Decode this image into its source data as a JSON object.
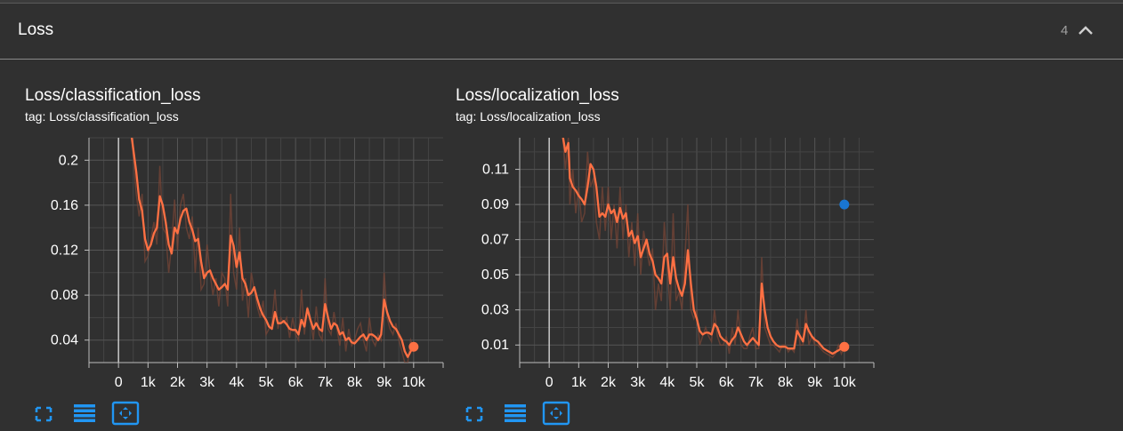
{
  "group": {
    "title": "Loss",
    "count": "4",
    "collapse_icon": "chevron-up-icon"
  },
  "colors": {
    "line": "#ff7043",
    "line_faint": "#7a4636",
    "point_blue": "#1976d2",
    "grid": "#555555",
    "axis": "#bdbdbd",
    "tool_blue": "#2196f3"
  },
  "tools": [
    "fullscreen-icon",
    "data-table-icon",
    "fit-domain-icon"
  ],
  "chart_data": [
    {
      "type": "line",
      "title": "Loss/classification_loss",
      "subtitle": "tag: Loss/classification_loss",
      "xlabel": "",
      "ylabel": "",
      "xlim": [
        -1000,
        11000
      ],
      "ylim": [
        0.02,
        0.22
      ],
      "x_ticks": [
        0,
        1000,
        2000,
        3000,
        4000,
        5000,
        6000,
        7000,
        8000,
        9000,
        10000
      ],
      "x_tick_labels": [
        "0",
        "1k",
        "2k",
        "3k",
        "4k",
        "5k",
        "6k",
        "7k",
        "8k",
        "9k",
        "10k"
      ],
      "y_ticks": [
        0.04,
        0.08,
        0.12,
        0.16,
        0.2
      ],
      "y_tick_labels": [
        "0.04",
        "0.08",
        "0.12",
        "0.16",
        "0.2"
      ],
      "grid": true,
      "series": [
        {
          "smoothed": true,
          "x": [
            450,
            600,
            700,
            800,
            900,
            1000,
            1100,
            1200,
            1300,
            1400,
            1500,
            1600,
            1700,
            1800,
            1900,
            2000,
            2100,
            2200,
            2300,
            2400,
            2500,
            2600,
            2700,
            2800,
            2900,
            3000,
            3100,
            3200,
            3300,
            3400,
            3500,
            3600,
            3700,
            3800,
            3900,
            4000,
            4100,
            4200,
            4300,
            4400,
            4500,
            4600,
            4700,
            4800,
            4900,
            5000,
            5100,
            5200,
            5300,
            5400,
            5500,
            5600,
            5700,
            5800,
            5900,
            6000,
            6100,
            6200,
            6300,
            6400,
            6500,
            6600,
            6700,
            6800,
            6900,
            7000,
            7100,
            7200,
            7300,
            7400,
            7500,
            7600,
            7700,
            7800,
            7900,
            8000,
            8100,
            8200,
            8300,
            8400,
            8500,
            8600,
            8700,
            8800,
            8900,
            9000,
            9100,
            9200,
            9300,
            9400,
            9500,
            9600,
            9700,
            9800,
            9900,
            10000
          ],
          "y": [
            0.22,
            0.19,
            0.165,
            0.155,
            0.13,
            0.12,
            0.125,
            0.135,
            0.14,
            0.168,
            0.16,
            0.145,
            0.125,
            0.117,
            0.14,
            0.135,
            0.148,
            0.155,
            0.157,
            0.145,
            0.138,
            0.128,
            0.13,
            0.11,
            0.095,
            0.1,
            0.102,
            0.095,
            0.09,
            0.085,
            0.087,
            0.09,
            0.085,
            0.133,
            0.124,
            0.105,
            0.118,
            0.095,
            0.09,
            0.08,
            0.082,
            0.087,
            0.077,
            0.068,
            0.062,
            0.058,
            0.052,
            0.05,
            0.065,
            0.055,
            0.055,
            0.057,
            0.054,
            0.05,
            0.049,
            0.049,
            0.045,
            0.058,
            0.052,
            0.068,
            0.058,
            0.05,
            0.055,
            0.05,
            0.048,
            0.072,
            0.06,
            0.05,
            0.055,
            0.053,
            0.045,
            0.047,
            0.04,
            0.042,
            0.038,
            0.037,
            0.04,
            0.043,
            0.045,
            0.04,
            0.045,
            0.045,
            0.043,
            0.04,
            0.045,
            0.076,
            0.065,
            0.057,
            0.052,
            0.05,
            0.045,
            0.04,
            0.03,
            0.025,
            0.03,
            0.034
          ]
        },
        {
          "raw": true,
          "x": [
            450,
            600,
            700,
            800,
            900,
            1000,
            1100,
            1200,
            1300,
            1400,
            1500,
            1600,
            1700,
            1800,
            1900,
            2000,
            2100,
            2200,
            2300,
            2400,
            2500,
            2600,
            2700,
            2800,
            2900,
            3000,
            3100,
            3200,
            3300,
            3400,
            3500,
            3600,
            3700,
            3800,
            3900,
            4000,
            4100,
            4200,
            4300,
            4400,
            4500,
            4600,
            4700,
            4800,
            4900,
            5000,
            5100,
            5200,
            5300,
            5400,
            5500,
            5600,
            5700,
            5800,
            5900,
            6000,
            6100,
            6200,
            6300,
            6400,
            6500,
            6600,
            6700,
            6800,
            6900,
            7000,
            7100,
            7200,
            7300,
            7400,
            7500,
            7600,
            7700,
            7800,
            7900,
            8000,
            8100,
            8200,
            8300,
            8400,
            8500,
            8600,
            8700,
            8800,
            8900,
            9000,
            9100,
            9200,
            9300,
            9400,
            9500,
            9600,
            9700,
            9800,
            9900,
            10000
          ],
          "y": [
            0.22,
            0.17,
            0.15,
            0.17,
            0.11,
            0.115,
            0.13,
            0.145,
            0.125,
            0.195,
            0.14,
            0.135,
            0.1,
            0.125,
            0.165,
            0.12,
            0.16,
            0.17,
            0.14,
            0.13,
            0.15,
            0.1,
            0.14,
            0.085,
            0.09,
            0.125,
            0.1,
            0.08,
            0.095,
            0.07,
            0.1,
            0.095,
            0.07,
            0.17,
            0.1,
            0.085,
            0.14,
            0.075,
            0.095,
            0.06,
            0.1,
            0.085,
            0.07,
            0.06,
            0.075,
            0.045,
            0.05,
            0.055,
            0.085,
            0.05,
            0.06,
            0.055,
            0.06,
            0.042,
            0.06,
            0.045,
            0.04,
            0.085,
            0.045,
            0.07,
            0.06,
            0.04,
            0.07,
            0.045,
            0.04,
            0.095,
            0.05,
            0.045,
            0.065,
            0.05,
            0.035,
            0.06,
            0.03,
            0.05,
            0.035,
            0.04,
            0.05,
            0.055,
            0.04,
            0.03,
            0.06,
            0.04,
            0.035,
            0.045,
            0.04,
            0.1,
            0.06,
            0.05,
            0.045,
            0.055,
            0.04,
            0.03,
            0.02,
            0.02,
            0.04,
            0.034
          ]
        }
      ],
      "end_point": {
        "x": 10000,
        "y": 0.034
      },
      "extra_point": null
    },
    {
      "type": "line",
      "title": "Loss/localization_loss",
      "subtitle": "tag: Loss/localization_loss",
      "xlabel": "",
      "ylabel": "",
      "xlim": [
        -1000,
        11000
      ],
      "ylim": [
        0.0,
        0.128
      ],
      "x_ticks": [
        0,
        1000,
        2000,
        3000,
        4000,
        5000,
        6000,
        7000,
        8000,
        9000,
        10000
      ],
      "x_tick_labels": [
        "0",
        "1k",
        "2k",
        "3k",
        "4k",
        "5k",
        "6k",
        "7k",
        "8k",
        "9k",
        "10k"
      ],
      "y_ticks": [
        0.01,
        0.03,
        0.05,
        0.07,
        0.09,
        0.11
      ],
      "y_tick_labels": [
        "0.01",
        "0.03",
        "0.05",
        "0.07",
        "0.09",
        "0.11"
      ],
      "grid": true,
      "series": [
        {
          "smoothed": true,
          "x": [
            450,
            550,
            650,
            700,
            800,
            900,
            1000,
            1100,
            1200,
            1300,
            1400,
            1500,
            1600,
            1700,
            1800,
            1900,
            2000,
            2100,
            2200,
            2300,
            2400,
            2500,
            2600,
            2700,
            2800,
            2900,
            3000,
            3100,
            3200,
            3300,
            3400,
            3500,
            3600,
            3700,
            3800,
            3900,
            4000,
            4100,
            4200,
            4300,
            4400,
            4500,
            4600,
            4700,
            4800,
            4900,
            5000,
            5100,
            5200,
            5300,
            5400,
            5500,
            5600,
            5700,
            5800,
            5900,
            6000,
            6100,
            6200,
            6300,
            6400,
            6500,
            6600,
            6700,
            6800,
            6900,
            7000,
            7100,
            7200,
            7300,
            7400,
            7500,
            7600,
            7700,
            7800,
            7900,
            8000,
            8100,
            8200,
            8300,
            8400,
            8500,
            8600,
            8700,
            8800,
            8900,
            9000,
            9100,
            9200,
            9300,
            9400,
            9500,
            9600,
            9700,
            9800,
            9900,
            10000
          ],
          "y": [
            0.13,
            0.12,
            0.125,
            0.105,
            0.1,
            0.098,
            0.095,
            0.093,
            0.09,
            0.1,
            0.113,
            0.11,
            0.1,
            0.083,
            0.085,
            0.083,
            0.09,
            0.085,
            0.087,
            0.08,
            0.088,
            0.082,
            0.085,
            0.072,
            0.075,
            0.068,
            0.072,
            0.06,
            0.065,
            0.07,
            0.062,
            0.058,
            0.05,
            0.048,
            0.045,
            0.06,
            0.062,
            0.045,
            0.06,
            0.048,
            0.042,
            0.038,
            0.045,
            0.064,
            0.045,
            0.03,
            0.025,
            0.018,
            0.016,
            0.017,
            0.017,
            0.016,
            0.022,
            0.02,
            0.015,
            0.013,
            0.012,
            0.01,
            0.013,
            0.015,
            0.02,
            0.016,
            0.012,
            0.01,
            0.012,
            0.014,
            0.012,
            0.01,
            0.045,
            0.03,
            0.02,
            0.015,
            0.012,
            0.01,
            0.009,
            0.009,
            0.009,
            0.008,
            0.008,
            0.008,
            0.018,
            0.015,
            0.012,
            0.022,
            0.018,
            0.015,
            0.013,
            0.012,
            0.01,
            0.008,
            0.007,
            0.006,
            0.005,
            0.006,
            0.007,
            0.008,
            0.009
          ]
        },
        {
          "raw": true,
          "x": [
            450,
            550,
            650,
            700,
            800,
            900,
            1000,
            1100,
            1200,
            1300,
            1400,
            1500,
            1600,
            1700,
            1800,
            1900,
            2000,
            2100,
            2200,
            2300,
            2400,
            2500,
            2600,
            2700,
            2800,
            2900,
            3000,
            3100,
            3200,
            3300,
            3400,
            3500,
            3600,
            3700,
            3800,
            3900,
            4000,
            4100,
            4200,
            4300,
            4400,
            4500,
            4600,
            4700,
            4800,
            4900,
            5000,
            5100,
            5200,
            5300,
            5400,
            5500,
            5600,
            5700,
            5800,
            5900,
            6000,
            6100,
            6200,
            6300,
            6400,
            6500,
            6600,
            6700,
            6800,
            6900,
            7000,
            7100,
            7200,
            7300,
            7400,
            7500,
            7600,
            7700,
            7800,
            7900,
            8000,
            8100,
            8200,
            8300,
            8400,
            8500,
            8600,
            8700,
            8800,
            8900,
            9000,
            9100,
            9200,
            9300,
            9400,
            9500,
            9600,
            9700,
            9800,
            9900,
            10000
          ],
          "y": [
            0.13,
            0.11,
            0.128,
            0.09,
            0.11,
            0.085,
            0.1,
            0.08,
            0.085,
            0.12,
            0.1,
            0.105,
            0.08,
            0.07,
            0.1,
            0.075,
            0.1,
            0.07,
            0.09,
            0.065,
            0.1,
            0.07,
            0.09,
            0.06,
            0.08,
            0.055,
            0.085,
            0.05,
            0.075,
            0.065,
            0.055,
            0.065,
            0.03,
            0.045,
            0.035,
            0.08,
            0.055,
            0.03,
            0.085,
            0.035,
            0.04,
            0.03,
            0.06,
            0.09,
            0.03,
            0.025,
            0.03,
            0.01,
            0.015,
            0.02,
            0.015,
            0.012,
            0.03,
            0.015,
            0.01,
            0.01,
            0.015,
            0.005,
            0.02,
            0.01,
            0.03,
            0.01,
            0.008,
            0.008,
            0.015,
            0.02,
            0.008,
            0.008,
            0.06,
            0.02,
            0.015,
            0.01,
            0.01,
            0.008,
            0.006,
            0.01,
            0.01,
            0.006,
            0.008,
            0.006,
            0.025,
            0.01,
            0.01,
            0.03,
            0.01,
            0.015,
            0.01,
            0.01,
            0.008,
            0.006,
            0.005,
            0.004,
            0.003,
            0.005,
            0.01,
            0.005,
            0.009
          ]
        }
      ],
      "end_point": {
        "x": 10000,
        "y": 0.009
      },
      "extra_point": {
        "x": 10000,
        "y": 0.09
      }
    }
  ]
}
